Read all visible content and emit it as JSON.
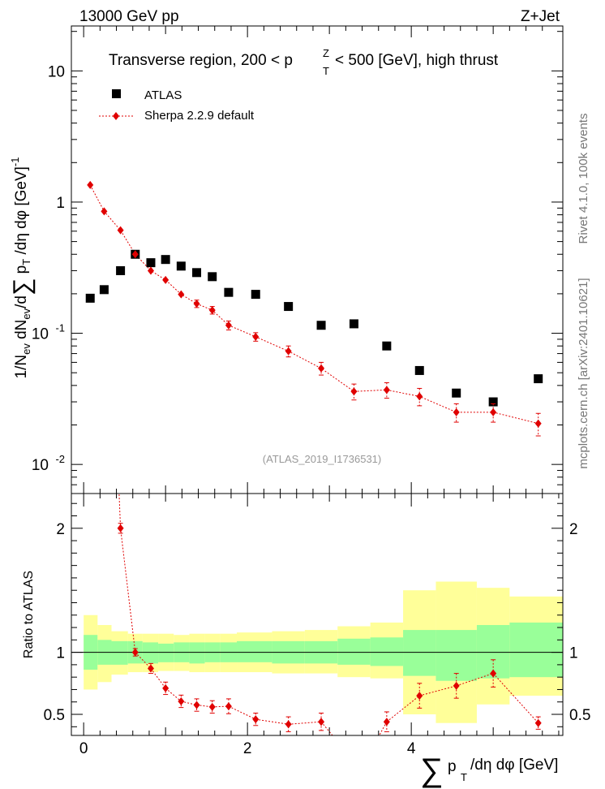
{
  "header": {
    "energy_label": "13000 GeV pp",
    "process_label": "Z+Jet"
  },
  "side_labels": {
    "rivet": "Rivet 4.1.0,  100k events",
    "mcplots": "mcplots.cern.ch [arXiv:2401.10621]"
  },
  "chart_data": [
    {
      "type": "scatter",
      "title": "Transverse region, 200 < p_T^Z < 500 [GeV], high thrust",
      "ylabel": "1/N_ev dN_ev/d∑p_T/dη dφ [GeV]^-1",
      "xlabel": "∑p_T/dη dφ [GeV]",
      "yscale": "log",
      "xlim": [
        -0.15,
        5.85
      ],
      "ylim": [
        0.006,
        22
      ],
      "watermark": "(ATLAS_2019_I1736531)",
      "y_tick_labels": [
        "10^-2",
        "10^-1",
        "1",
        "10"
      ],
      "legend": [
        "ATLAS",
        "Sherpa 2.2.9 default"
      ],
      "series": [
        {
          "name": "ATLAS",
          "marker": "square",
          "color": "#000000",
          "x": [
            0.08,
            0.25,
            0.45,
            0.63,
            0.82,
            1.0,
            1.19,
            1.38,
            1.57,
            1.77,
            2.1,
            2.5,
            2.9,
            3.3,
            3.7,
            4.1,
            4.55,
            5.0,
            5.55
          ],
          "y": [
            0.185,
            0.215,
            0.3,
            0.4,
            0.345,
            0.365,
            0.325,
            0.29,
            0.27,
            0.205,
            0.198,
            0.16,
            0.115,
            0.118,
            0.08,
            0.052,
            0.035,
            0.03,
            0.045
          ]
        },
        {
          "name": "Sherpa 2.2.9 default",
          "marker": "diamond",
          "color": "#e00000",
          "x": [
            0.08,
            0.25,
            0.45,
            0.63,
            0.82,
            1.0,
            1.19,
            1.38,
            1.57,
            1.77,
            2.1,
            2.5,
            2.9,
            3.3,
            3.7,
            4.1,
            4.55,
            5.0,
            5.55
          ],
          "y": [
            1.35,
            0.85,
            0.61,
            0.4,
            0.3,
            0.255,
            0.198,
            0.168,
            0.15,
            0.115,
            0.094,
            0.073,
            0.054,
            0.036,
            0.037,
            0.033,
            0.025,
            0.025,
            0.0205
          ],
          "yerr": [
            0.03,
            0.03,
            0.03,
            0.02,
            0.015,
            0.014,
            0.012,
            0.011,
            0.01,
            0.009,
            0.007,
            0.007,
            0.006,
            0.005,
            0.005,
            0.005,
            0.004,
            0.004,
            0.004
          ]
        }
      ]
    },
    {
      "type": "scatter",
      "title": "",
      "ylabel": "Ratio to ATLAS",
      "xlabel": "∑p_T/dη dφ [GeV]",
      "xlim": [
        -0.15,
        5.85
      ],
      "ylim": [
        0.33,
        2.28
      ],
      "x_tick_labels": [
        "0",
        "2",
        "4"
      ],
      "y_tick_labels": [
        "0.5",
        "1",
        "2"
      ],
      "reference_line": 1,
      "bands": {
        "edges": [
          0,
          0.17,
          0.34,
          0.54,
          0.72,
          0.91,
          1.1,
          1.29,
          1.48,
          1.67,
          1.87,
          2.3,
          2.7,
          3.1,
          3.5,
          3.9,
          4.3,
          4.8,
          5.2,
          5.85
        ],
        "inner_low": [
          0.86,
          0.9,
          0.9,
          0.91,
          0.91,
          0.92,
          0.92,
          0.91,
          0.92,
          0.92,
          0.92,
          0.91,
          0.91,
          0.9,
          0.89,
          0.81,
          0.77,
          0.79,
          0.8
        ],
        "inner_high": [
          1.14,
          1.1,
          1.09,
          1.09,
          1.08,
          1.07,
          1.08,
          1.08,
          1.08,
          1.08,
          1.09,
          1.09,
          1.09,
          1.11,
          1.12,
          1.18,
          1.18,
          1.22,
          1.24
        ],
        "outer_low": [
          0.7,
          0.76,
          0.82,
          0.84,
          0.84,
          0.85,
          0.85,
          0.84,
          0.84,
          0.84,
          0.84,
          0.83,
          0.83,
          0.8,
          0.79,
          0.5,
          0.43,
          0.58,
          0.65
        ],
        "outer_high": [
          1.3,
          1.22,
          1.17,
          1.15,
          1.15,
          1.15,
          1.14,
          1.15,
          1.15,
          1.15,
          1.16,
          1.17,
          1.18,
          1.21,
          1.24,
          1.5,
          1.57,
          1.52,
          1.45
        ],
        "inner_color": "#99ff99",
        "outer_color": "#ffff99"
      },
      "series": [
        {
          "name": "Sherpa 2.2.9 default / ATLAS",
          "marker": "diamond",
          "color": "#e00000",
          "x": [
            0.45,
            0.63,
            0.82,
            1.0,
            1.19,
            1.38,
            1.57,
            1.77,
            2.1,
            2.5,
            2.9,
            3.7,
            4.1,
            4.55,
            5.0,
            5.55
          ],
          "y": [
            2.0,
            1.0,
            0.87,
            0.71,
            0.605,
            0.575,
            0.56,
            0.565,
            0.46,
            0.42,
            0.44,
            0.44,
            0.65,
            0.73,
            0.83,
            0.43
          ],
          "yerr": [
            0.04,
            0.03,
            0.04,
            0.05,
            0.05,
            0.05,
            0.05,
            0.06,
            0.05,
            0.06,
            0.07,
            0.08,
            0.1,
            0.1,
            0.11,
            0.05
          ],
          "off_scale": [
            {
              "x_from": 0.08,
              "y_from": 8.0,
              "x_to": 0.45,
              "y_to": 2.0
            },
            {
              "x_from": 2.9,
              "y_from": 0.44,
              "x_to": 3.2,
              "y_to": 0.2
            },
            {
              "x_from": 3.5,
              "y_from": 0.2,
              "x_to": 3.7,
              "y_to": 0.44
            }
          ]
        }
      ]
    }
  ]
}
